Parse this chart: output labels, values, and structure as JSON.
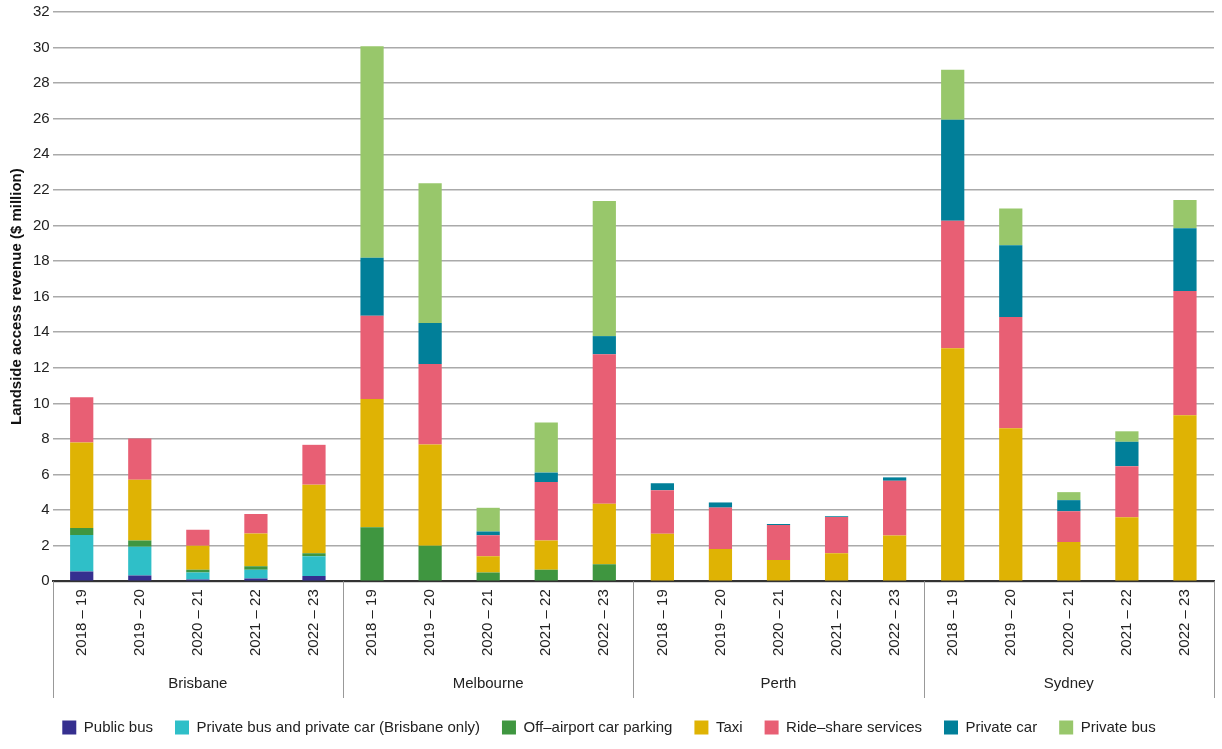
{
  "chart_data": {
    "type": "bar",
    "stacked": true,
    "ylabel": "Landside access revenue ($ million)",
    "categories": [
      "2018 – 19",
      "2019 – 20",
      "2020 – 21",
      "2021 – 22",
      "2022 – 23",
      "2018 – 19",
      "2019 – 20",
      "2020 – 21",
      "2021 – 22",
      "2022 – 23",
      "2018 – 19",
      "2019 – 20",
      "2020 – 21",
      "2021 – 22",
      "2022 – 23",
      "2018 – 19",
      "2019 – 20",
      "2020 – 21",
      "2021 – 22",
      "2022 – 23"
    ],
    "annotations": [
      "Brisbane",
      "Melbourne",
      "Perth",
      "Sydney"
    ],
    "series": [
      {
        "name": "Public bus",
        "color": "#352f8f",
        "values": [
          0.55,
          0.33,
          0.1,
          0.16,
          0.29,
          null,
          null,
          null,
          null,
          null,
          null,
          null,
          null,
          null,
          null,
          null,
          null,
          null,
          null,
          null
        ]
      },
      {
        "name": "Private bus and private car (Brisbane only)",
        "color": "#2fbfc8",
        "values": [
          2.05,
          1.61,
          0.39,
          0.49,
          1.12,
          null,
          null,
          null,
          null,
          null,
          null,
          null,
          null,
          null,
          null,
          null,
          null,
          null,
          null,
          null
        ]
      },
      {
        "name": "Off–airport car parking",
        "color": "#3f9640",
        "values": [
          0.4,
          0.35,
          0.16,
          0.19,
          0.16,
          3.03,
          2.0,
          0.49,
          0.65,
          0.96,
          null,
          null,
          null,
          null,
          null,
          null,
          null,
          null,
          null,
          null
        ]
      },
      {
        "name": "Taxi",
        "color": "#dfb304",
        "values": [
          4.8,
          3.42,
          1.35,
          1.85,
          3.86,
          7.22,
          5.69,
          0.92,
          1.64,
          3.4,
          2.67,
          1.82,
          1.2,
          1.57,
          2.57,
          13.1,
          8.6,
          2.21,
          3.6,
          9.33
        ]
      },
      {
        "name": "Ride–share services",
        "color": "#e85f74",
        "values": [
          2.55,
          2.31,
          0.9,
          1.09,
          2.24,
          4.68,
          4.52,
          1.17,
          3.29,
          8.4,
          2.45,
          2.32,
          1.96,
          2.04,
          3.08,
          7.16,
          6.26,
          1.72,
          2.87,
          6.98
        ]
      },
      {
        "name": "Private car",
        "color": "#017f99",
        "values": [
          null,
          null,
          null,
          null,
          null,
          3.25,
          2.31,
          0.22,
          0.53,
          1.02,
          0.39,
          0.29,
          0.06,
          0.04,
          0.19,
          5.69,
          4.03,
          0.63,
          1.37,
          3.54
        ]
      },
      {
        "name": "Private bus",
        "color": "#98c76b",
        "values": [
          null,
          null,
          null,
          null,
          null,
          11.9,
          7.85,
          1.33,
          2.81,
          7.59,
          null,
          null,
          null,
          null,
          null,
          2.81,
          2.07,
          0.45,
          0.59,
          1.58
        ]
      }
    ],
    "ylim": [
      0,
      32
    ],
    "yticks": [
      0,
      2,
      4,
      6,
      8,
      10,
      12,
      14,
      16,
      18,
      20,
      22,
      24,
      26,
      28,
      30,
      32
    ],
    "grid": "y",
    "legend": "bottom"
  }
}
